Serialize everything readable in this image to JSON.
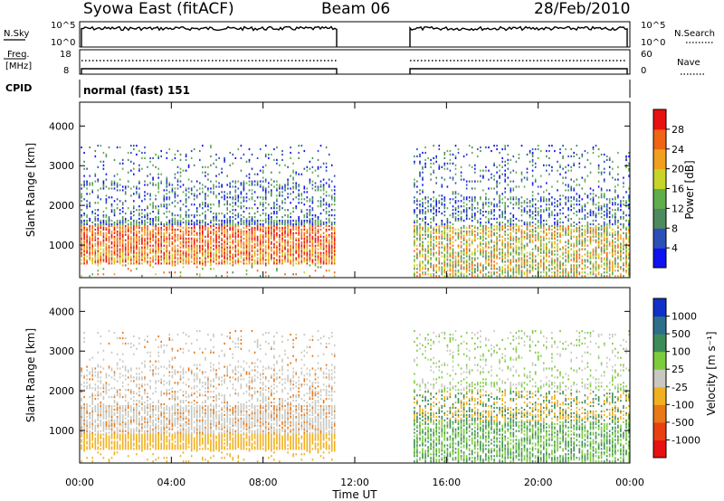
{
  "header": {
    "station": "Syowa East (fitACF)",
    "beam": "Beam 06",
    "date": "28/Feb/2010"
  },
  "labels": {
    "nsky": "N.Sky",
    "nsearch": "N.Search",
    "freq_line1": "Freq.",
    "freq_line2": "[MHz]",
    "nave": "Nave",
    "cpid": "CPID",
    "cpid_name": "normal (fast) 151",
    "noise_top": "10^5",
    "noise_bottom": "10^0",
    "freq_top": "18",
    "freq_bottom": "8",
    "nave_top": "60",
    "nave_bottom": "0",
    "slant_range": "Slant Range [km]",
    "time_ut": "Time UT",
    "power_title": "Power [dB]",
    "velocity_title": "Velocity [m s⁻¹]"
  },
  "chart_data": {
    "type": "heatmap",
    "x_label": "Time UT",
    "x_ticks": [
      "00:00",
      "04:00",
      "08:00",
      "12:00",
      "16:00",
      "20:00",
      "00:00"
    ],
    "xlim_hours": [
      0,
      24
    ],
    "data_gap_hours": [
      11.2,
      14.5
    ],
    "y_label": "Slant Range [km]",
    "y_ticks": [
      1000,
      2000,
      3000,
      4000
    ],
    "ylim_km": [
      180,
      4600
    ],
    "power": {
      "title": "Power [dB]",
      "colorbar_ticks": [
        4,
        8,
        12,
        16,
        20,
        24,
        28
      ],
      "colors": [
        "#1010f0",
        "#2b4fb8",
        "#4d8a5e",
        "#5fae4b",
        "#c8d428",
        "#f0a01e",
        "#f06414",
        "#e81010"
      ]
    },
    "velocity": {
      "title": "Velocity [m s⁻¹]",
      "colorbar_ticks": [
        1000,
        500,
        100,
        25,
        -25,
        -100,
        -500,
        -1000
      ],
      "colors": [
        "#1030c8",
        "#2e6e8a",
        "#3c8c5a",
        "#7ccc3c",
        "#c8c8c0",
        "#f0b020",
        "#e87818",
        "#e84010",
        "#e81010"
      ]
    }
  }
}
